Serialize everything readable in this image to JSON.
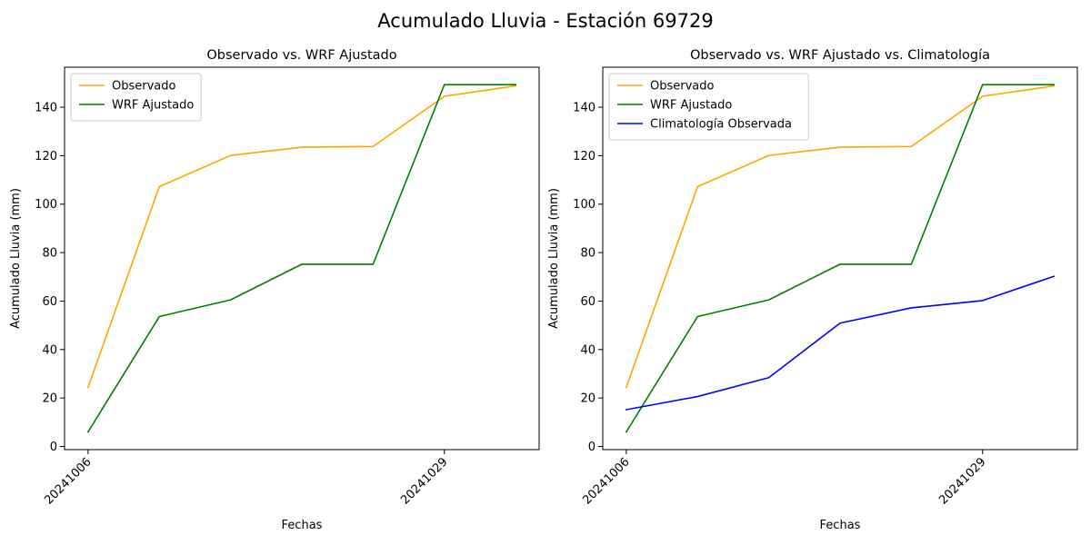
{
  "figure": {
    "suptitle": "Acumulado Lluvia - Estación 69729"
  },
  "chart_data": [
    {
      "type": "line",
      "title": "Observado vs. WRF Ajustado",
      "xlabel": "Fechas",
      "ylabel": "Acumulado Lluvia (mm)",
      "x_tick_labels": [
        {
          "index": 0,
          "label": "20241006"
        },
        {
          "index": 5,
          "label": "20241029"
        }
      ],
      "y_ticks": [
        0,
        20,
        40,
        60,
        80,
        100,
        120,
        140
      ],
      "xlim": [
        -0.33,
        6.33
      ],
      "ylim": [
        -1.3,
        156.5
      ],
      "legend_position": "upper-left",
      "grid": false,
      "series": [
        {
          "name": "Observado",
          "color": "#ffa500",
          "values": [
            24.4,
            107.2,
            120.1,
            123.5,
            123.8,
            144.5,
            148.8
          ]
        },
        {
          "name": "WRF Ajustado",
          "color": "#008000",
          "values": [
            6.0,
            53.6,
            60.5,
            75.2,
            75.2,
            149.3,
            149.3
          ]
        }
      ]
    },
    {
      "type": "line",
      "title": "Observado vs. WRF Ajustado vs. Climatología",
      "xlabel": "Fechas",
      "ylabel": "Acumulado Lluvia (mm)",
      "x_tick_labels": [
        {
          "index": 0,
          "label": "20241006"
        },
        {
          "index": 5,
          "label": "20241029"
        }
      ],
      "y_ticks": [
        0,
        20,
        40,
        60,
        80,
        100,
        120,
        140
      ],
      "xlim": [
        -0.33,
        6.33
      ],
      "ylim": [
        -1.3,
        156.5
      ],
      "legend_position": "upper-left",
      "grid": false,
      "series": [
        {
          "name": "Observado",
          "color": "#ffa500",
          "values": [
            24.4,
            107.2,
            120.1,
            123.5,
            123.8,
            144.5,
            148.8
          ]
        },
        {
          "name": "WRF Ajustado",
          "color": "#008000",
          "values": [
            6.0,
            53.6,
            60.5,
            75.2,
            75.2,
            149.3,
            149.3
          ]
        },
        {
          "name": "Climatología Observada",
          "color": "#0000ff",
          "values": [
            15.2,
            20.6,
            28.4,
            50.9,
            57.2,
            60.2,
            70.2
          ]
        }
      ]
    }
  ]
}
